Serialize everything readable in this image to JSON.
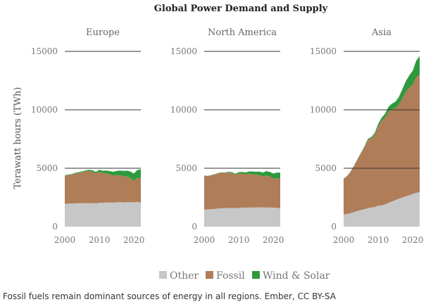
{
  "chart_data": {
    "type": "area",
    "stacked": true,
    "title": "Global Power Demand and Supply",
    "ylabel": "Terawatt hours (TWh)",
    "ylim": [
      0,
      15000
    ],
    "yticks": [
      0,
      5000,
      10000,
      15000
    ],
    "xlim": [
      2000,
      2022
    ],
    "xticks": [
      2000,
      2010,
      2020
    ],
    "grid": "horizontal",
    "legend_position": "bottom-center",
    "legend": [
      {
        "name": "Other",
        "color": "#c7c7c7"
      },
      {
        "name": "Fossil",
        "color": "#b07d59"
      },
      {
        "name": "Wind & Solar",
        "color": "#2e9a3d"
      }
    ],
    "panels": [
      {
        "title": "Europe",
        "x": [
          2000,
          2001,
          2002,
          2003,
          2004,
          2005,
          2006,
          2007,
          2008,
          2009,
          2010,
          2011,
          2012,
          2013,
          2014,
          2015,
          2016,
          2017,
          2018,
          2019,
          2020,
          2021,
          2022
        ],
        "series": [
          {
            "name": "Other",
            "values": [
              1950,
              1970,
              1980,
              2000,
              2010,
              2010,
              2020,
              2010,
              2020,
              1990,
              2050,
              2040,
              2060,
              2080,
              2070,
              2080,
              2100,
              2080,
              2090,
              2100,
              2080,
              2120,
              2050
            ]
          },
          {
            "name": "Fossil",
            "values": [
              2420,
              2450,
              2480,
              2550,
              2600,
              2650,
              2700,
              2750,
              2700,
              2550,
              2650,
              2550,
              2500,
              2400,
              2300,
              2330,
              2300,
              2250,
              2200,
              2050,
              1850,
              2050,
              2100
            ]
          },
          {
            "name": "Wind & Solar",
            "values": [
              30,
              40,
              40,
              50,
              60,
              70,
              80,
              100,
              120,
              140,
              170,
              200,
              240,
              280,
              320,
              370,
              400,
              450,
              500,
              560,
              620,
              680,
              760
            ]
          }
        ]
      },
      {
        "title": "North America",
        "x": [
          2000,
          2001,
          2002,
          2003,
          2004,
          2005,
          2006,
          2007,
          2008,
          2009,
          2010,
          2011,
          2012,
          2013,
          2014,
          2015,
          2016,
          2017,
          2018,
          2019,
          2020,
          2021,
          2022
        ],
        "series": [
          {
            "name": "Other",
            "values": [
              1470,
              1480,
              1500,
              1520,
              1560,
              1570,
              1580,
              1600,
              1600,
              1580,
              1610,
              1640,
              1620,
              1630,
              1640,
              1640,
              1660,
              1640,
              1650,
              1640,
              1620,
              1600,
              1590
            ]
          },
          {
            "name": "Fossil",
            "values": [
              2900,
              2850,
              2900,
              2950,
              3000,
              3050,
              3000,
              3050,
              3000,
              2850,
              2950,
              2900,
              2850,
              2900,
              2850,
              2800,
              2750,
              2650,
              2750,
              2650,
              2500,
              2550,
              2500
            ]
          },
          {
            "name": "Wind & Solar",
            "values": [
              10,
              15,
              15,
              20,
              25,
              30,
              40,
              50,
              70,
              90,
              110,
              140,
              170,
              200,
              230,
              260,
              300,
              330,
              360,
              390,
              430,
              480,
              530
            ]
          }
        ]
      },
      {
        "title": "Asia",
        "x": [
          2000,
          2001,
          2002,
          2003,
          2004,
          2005,
          2006,
          2007,
          2008,
          2009,
          2010,
          2011,
          2012,
          2013,
          2014,
          2015,
          2016,
          2017,
          2018,
          2019,
          2020,
          2021,
          2022
        ],
        "series": [
          {
            "name": "Other",
            "values": [
              1050,
              1080,
              1150,
              1250,
              1350,
              1420,
              1500,
              1580,
              1650,
              1680,
              1800,
              1820,
              1900,
              2050,
              2150,
              2280,
              2400,
              2500,
              2600,
              2700,
              2800,
              2900,
              2950
            ]
          },
          {
            "name": "Fossil",
            "values": [
              3050,
              3250,
              3550,
              3950,
              4400,
              4850,
              5300,
              5850,
              5900,
              6200,
              6800,
              7250,
              7450,
              7800,
              7900,
              7850,
              8050,
              8500,
              8950,
              9200,
              9350,
              9900,
              10050
            ]
          },
          {
            "name": "Wind & Solar",
            "values": [
              5,
              10,
              15,
              20,
              30,
              40,
              60,
              80,
              110,
              150,
              200,
              250,
              320,
              400,
              480,
              560,
              650,
              780,
              900,
              1050,
              1200,
              1400,
              1600
            ]
          }
        ]
      }
    ]
  },
  "caption": "Fossil fuels remain dominant sources of energy in all regions. Ember, CC BY-SA"
}
